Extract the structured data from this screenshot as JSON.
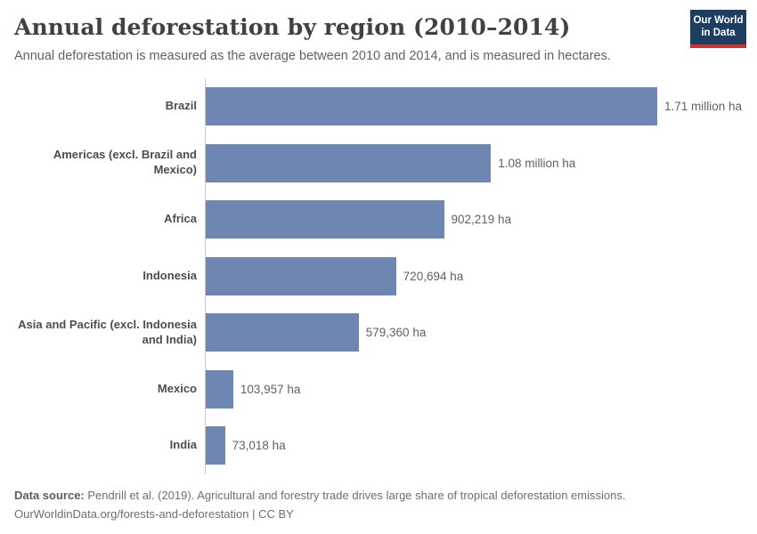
{
  "header": {
    "title": "Annual deforestation by region (2010–2014)",
    "subtitle": "Annual deforestation is measured as the average between 2010 and 2014, and is measured in hectares.",
    "logo": {
      "line1": "Our World",
      "line2": "in Data"
    }
  },
  "chart_data": {
    "type": "bar",
    "orientation": "horizontal",
    "title": "Annual deforestation by region (2010–2014)",
    "unit": "hectares",
    "categories": [
      "Brazil",
      "Americas (excl. Brazil and Mexico)",
      "Africa",
      "Indonesia",
      "Asia and Pacific (excl. Indonesia and India)",
      "Mexico",
      "India"
    ],
    "values": [
      1710000,
      1080000,
      902219,
      720694,
      579360,
      103957,
      73018
    ],
    "value_labels": [
      "1.71 million ha",
      "1.08 million ha",
      "902,219 ha",
      "720,694 ha",
      "579,360 ha",
      "103,957 ha",
      "73,018 ha"
    ],
    "xlim": [
      0,
      1710000
    ],
    "grid": false,
    "legend": "none",
    "bar_color": "#6e87b2",
    "axis_line_color": "#c9c9c9"
  },
  "footer": {
    "source_label": "Data source:",
    "source_text": " Pendrill et al. (2019). Agricultural and forestry trade drives large share of tropical deforestation emissions.",
    "license_line": "OurWorldinData.org/forests-and-deforestation | CC BY"
  },
  "colors": {
    "logo_bg": "#1d3d63",
    "logo_accent": "#cf342c",
    "title": "#414141",
    "subtitle": "#616161",
    "category_label": "#4c4c4c",
    "value_label": "#616161"
  }
}
